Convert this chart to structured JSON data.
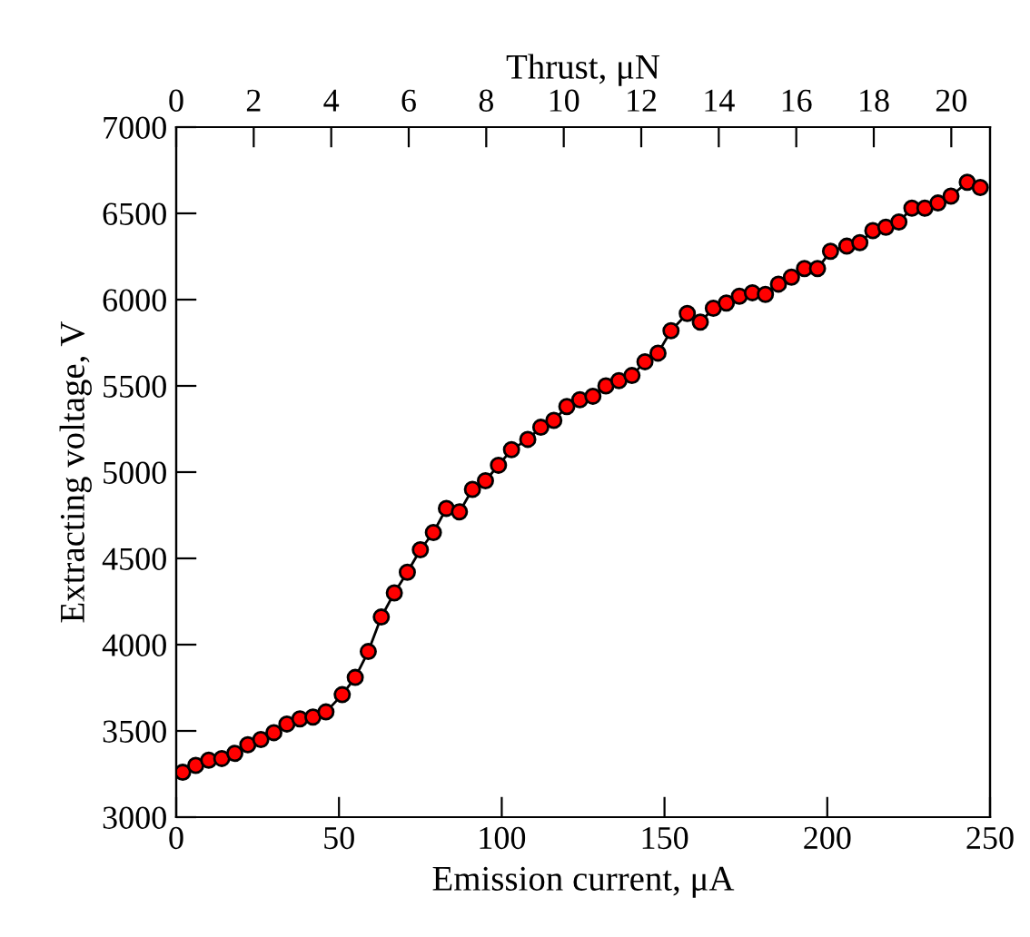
{
  "chart_data": {
    "type": "scatter",
    "xlabel": "Emission current, μA",
    "ylabel": "Extracting voltage, V",
    "x2label": "Thrust, μN",
    "xlim": [
      0,
      250
    ],
    "xticks": [
      0,
      50,
      100,
      150,
      200,
      250
    ],
    "ylim": [
      3000,
      7000
    ],
    "yticks": [
      3000,
      3500,
      4000,
      4500,
      5000,
      5500,
      6000,
      6500,
      7000
    ],
    "x2lim": [
      0,
      21
    ],
    "x2ticks": [
      0,
      2,
      4,
      6,
      8,
      10,
      12,
      14,
      16,
      18,
      20
    ],
    "line_style": "solid",
    "grid": false,
    "legend": false,
    "x": [
      2,
      6,
      10,
      14,
      18,
      22,
      26,
      30,
      34,
      38,
      42,
      46,
      51,
      55,
      59,
      63,
      67,
      71,
      75,
      79,
      83,
      87,
      91,
      95,
      99,
      103,
      108,
      112,
      116,
      120,
      124,
      128,
      132,
      136,
      140,
      144,
      148,
      152,
      157,
      161,
      165,
      169,
      173,
      177,
      181,
      185,
      189,
      193,
      197,
      201,
      206,
      210,
      214,
      218,
      222,
      226,
      230,
      234,
      238,
      243,
      247
    ],
    "series": [
      {
        "type": "line",
        "color": "#000000",
        "marker": "none",
        "values": [
          3260,
          3300,
          3330,
          3340,
          3370,
          3420,
          3450,
          3490,
          3540,
          3570,
          3580,
          3610,
          3710,
          3810,
          3960,
          4160,
          4300,
          4420,
          4550,
          4650,
          4790,
          4770,
          4900,
          4950,
          5040,
          5130,
          5190,
          5260,
          5300,
          5380,
          5420,
          5440,
          5500,
          5530,
          5560,
          5640,
          5690,
          5820,
          5920,
          5870,
          5950,
          5980,
          6020,
          6040,
          6030,
          6090,
          6130,
          6180,
          6180,
          6280,
          6310,
          6330,
          6400,
          6420,
          6450,
          6530,
          6530,
          6560,
          6600,
          6680,
          6650
        ]
      },
      {
        "color": "#ff0000",
        "marker": "circle",
        "values": [
          3260,
          3300,
          3330,
          3340,
          3370,
          3420,
          3450,
          3490,
          3540,
          3570,
          3580,
          3610,
          3710,
          3810,
          3960,
          4160,
          4300,
          4420,
          4550,
          4650,
          4790,
          4770,
          4900,
          4950,
          5040,
          5130,
          5190,
          5260,
          5300,
          5380,
          5420,
          5440,
          5500,
          5530,
          5560,
          5640,
          5690,
          5820,
          5920,
          5870,
          5950,
          5980,
          6020,
          6040,
          6030,
          6090,
          6130,
          6180,
          6180,
          6280,
          6310,
          6330,
          6400,
          6420,
          6450,
          6530,
          6530,
          6560,
          6600,
          6680,
          6650
        ]
      }
    ]
  }
}
